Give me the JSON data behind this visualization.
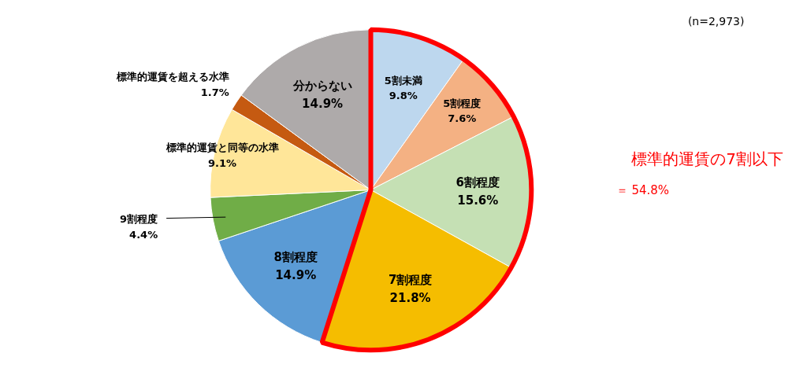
{
  "chart_data": {
    "type": "pie",
    "categories": [
      "5割未満",
      "5割程度",
      "6割程度",
      "7割程度",
      "8割程度",
      "9割程度",
      "標準的運賃と同等の水準",
      "標準的運賃を超える水準",
      "分からない"
    ],
    "values": [
      9.8,
      7.6,
      15.6,
      21.8,
      14.9,
      4.4,
      9.1,
      1.7,
      14.9
    ],
    "value_labels": [
      "9.8%",
      "7.6%",
      "15.6%",
      "21.8%",
      "14.9%",
      "4.4%",
      "9.1%",
      "1.7%",
      "14.9%"
    ],
    "colors": [
      "#bdd7ee",
      "#f4b183",
      "#c5e0b4",
      "#f5bd00",
      "#5b9bd5",
      "#70ad47",
      "#ffe699",
      "#c55a11",
      "#aeaaaa"
    ],
    "annotations": [
      "(n=2,973)",
      "標準的運賃の7割以下",
      "＝ 54.8%"
    ]
  }
}
